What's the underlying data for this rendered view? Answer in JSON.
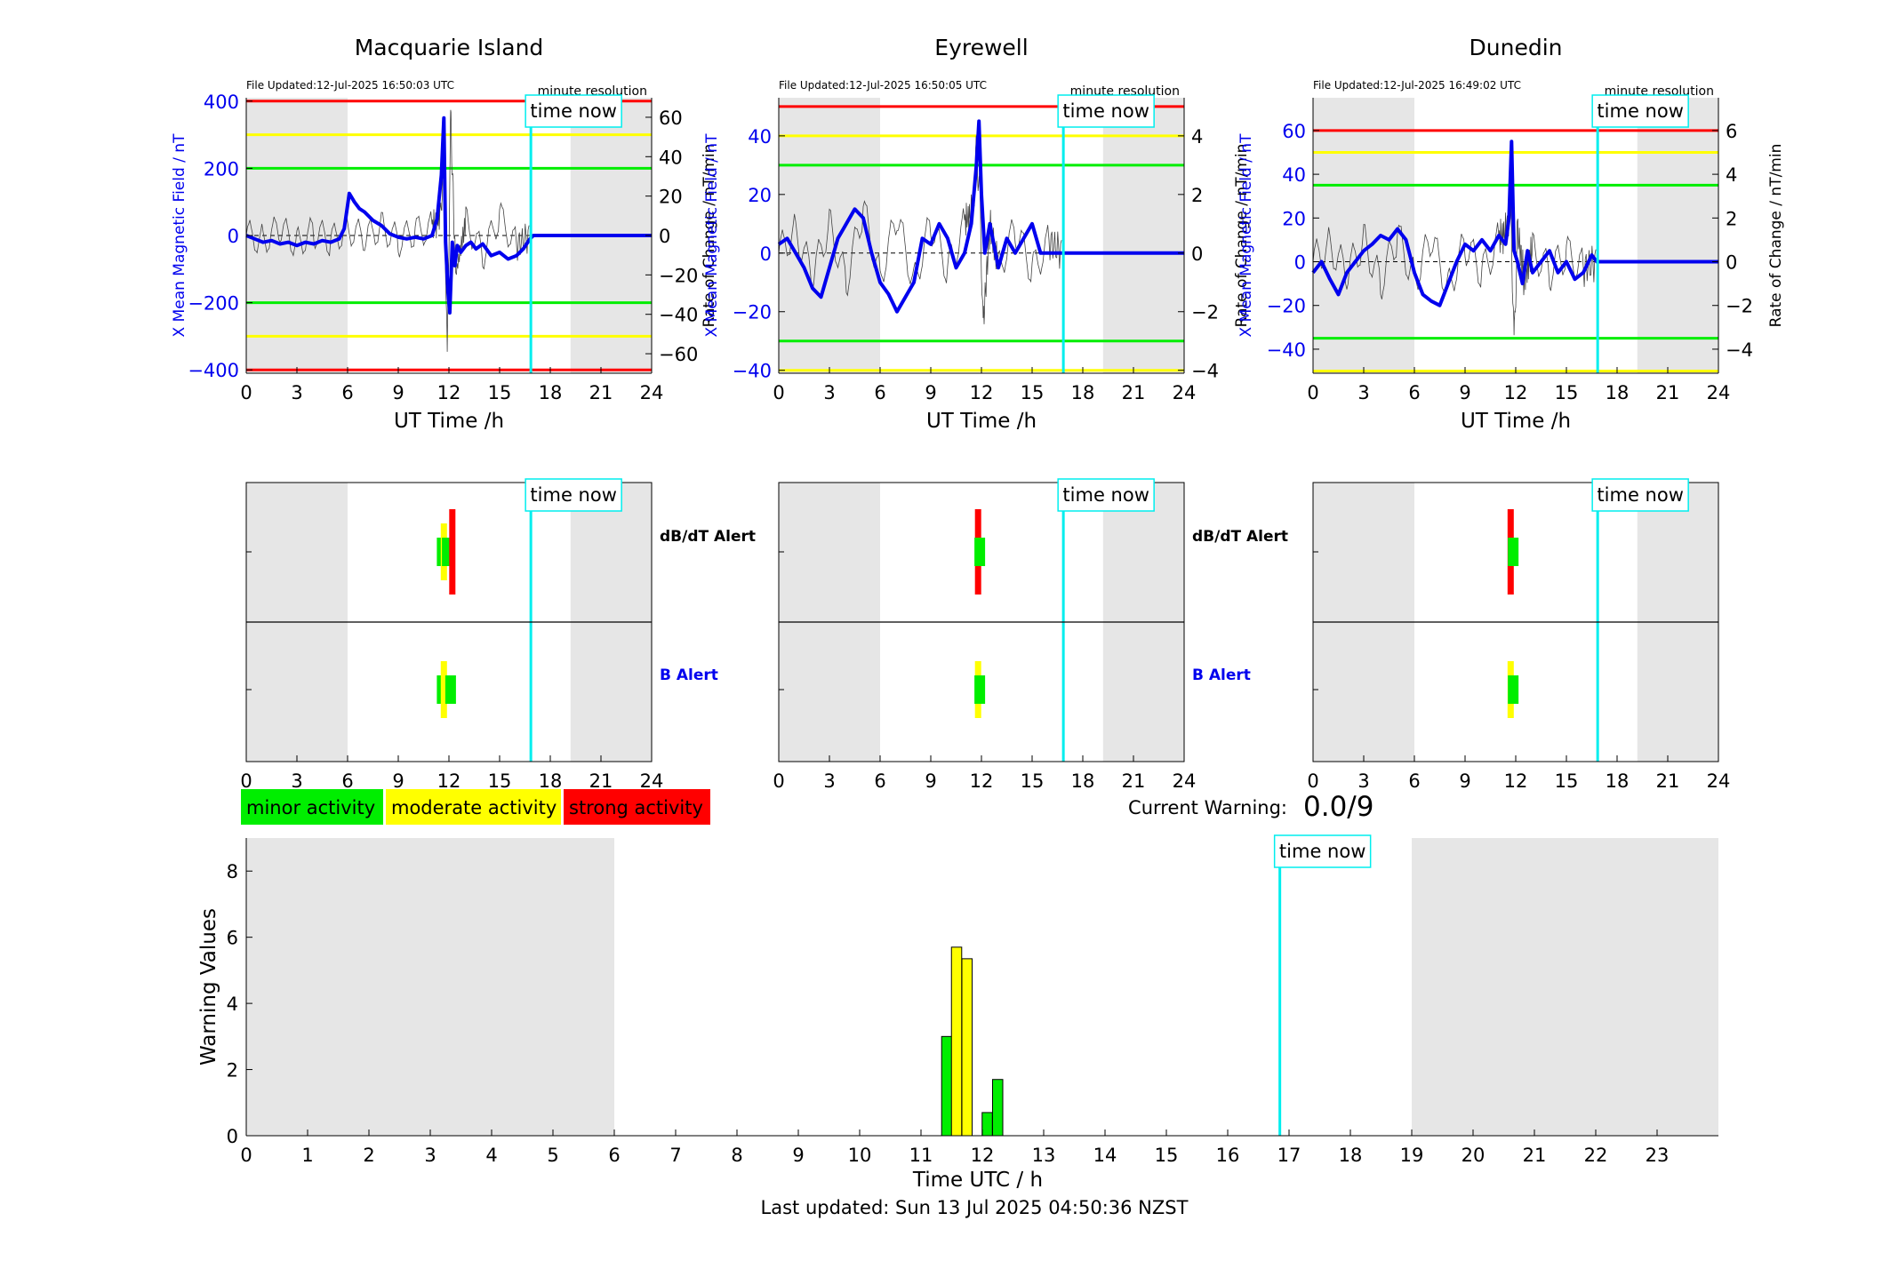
{
  "chart_data": [
    {
      "type": "line",
      "panel": "field",
      "title": "Macquarie Island",
      "file_updated": "File Updated:12-Jul-2025 16:50:03 UTC",
      "resolution_label": "minute resolution",
      "time_now_label": "time now",
      "time_now_hour": 16.85,
      "night_shading": [
        [
          0,
          6
        ],
        [
          19.2,
          24
        ]
      ],
      "xlabel": "UT Time /h",
      "ylabel_left": "X Mean Magnetic Field / nT",
      "ylabel_right": "Rate of Change / nT/min",
      "xlim": [
        0,
        24
      ],
      "xticks": [
        0,
        3,
        6,
        9,
        12,
        15,
        18,
        21,
        24
      ],
      "ylim_left": [
        -410,
        410
      ],
      "yticks_left": [
        -400,
        -200,
        0,
        200,
        400
      ],
      "ylim_right": [
        -69.9,
        69.9
      ],
      "yticks_right": [
        -60,
        -40,
        -20,
        0,
        20,
        40,
        60
      ],
      "thresholds": [
        {
          "level": "minor",
          "value": 200,
          "color": "#00ee00"
        },
        {
          "level": "moderate",
          "value": 300,
          "color": "#ffff00"
        },
        {
          "level": "strong",
          "value": 400,
          "color": "#ff0000"
        }
      ],
      "series": [
        {
          "axis": "left",
          "color": "#0000ee",
          "x": [
            0,
            0.5,
            1,
            1.5,
            2,
            2.5,
            3,
            3.5,
            4,
            4.5,
            5,
            5.5,
            5.8,
            6.1,
            6.4,
            6.7,
            7,
            7.5,
            8,
            8.5,
            9,
            9.5,
            10,
            10.5,
            11,
            11.3,
            11.55,
            11.7,
            11.8,
            11.95,
            12.05,
            12.2,
            12.35,
            12.5,
            12.7,
            13,
            13.3,
            13.6,
            14,
            14.5,
            15,
            15.5,
            16,
            16.4,
            16.8,
            17,
            18,
            19,
            20,
            21,
            22,
            23,
            24
          ],
          "y": [
            0,
            -10,
            -20,
            -15,
            -25,
            -20,
            -30,
            -20,
            -25,
            -15,
            -20,
            -10,
            20,
            125,
            100,
            80,
            70,
            45,
            30,
            5,
            -5,
            -10,
            -5,
            -10,
            0,
            50,
            180,
            350,
            -20,
            -170,
            -230,
            -20,
            -90,
            -30,
            -50,
            -30,
            -20,
            -40,
            -25,
            -60,
            -50,
            -70,
            -60,
            -40,
            -10,
            0,
            0,
            0,
            0,
            0,
            0,
            0,
            0
          ]
        },
        {
          "axis": "right",
          "color": "#000000",
          "style": "noisy",
          "x": [
            0,
            1,
            2,
            3,
            4,
            5,
            6,
            7,
            8,
            9,
            10,
            11,
            11.5,
            11.7,
            11.9,
            12.1,
            12.4,
            13,
            14,
            15,
            16,
            16.8
          ],
          "y": [
            0,
            -2,
            3,
            -4,
            2,
            -3,
            4,
            -2,
            5,
            -3,
            2,
            4,
            10,
            40,
            -65,
            60,
            -20,
            8,
            -10,
            10,
            -5,
            0
          ]
        }
      ]
    },
    {
      "type": "line",
      "panel": "field",
      "title": "Eyrewell",
      "file_updated": "File Updated:12-Jul-2025 16:50:05 UTC",
      "resolution_label": "minute resolution",
      "time_now_label": "time now",
      "time_now_hour": 16.85,
      "night_shading": [
        [
          0,
          6
        ],
        [
          19.2,
          24
        ]
      ],
      "xlabel": "UT Time /h",
      "ylabel_left": "X Mean Magnetic Field / nT",
      "ylabel_right": "Rate of Change / nT/min",
      "xlim": [
        0,
        24
      ],
      "xticks": [
        0,
        3,
        6,
        9,
        12,
        15,
        18,
        21,
        24
      ],
      "ylim_left": [
        -41,
        53
      ],
      "yticks_left": [
        -40,
        -20,
        0,
        20,
        40
      ],
      "ylim_right": [
        -4.1,
        5.3
      ],
      "yticks_right": [
        -4,
        -2,
        0,
        2,
        4
      ],
      "thresholds": [
        {
          "level": "minor",
          "value": 30,
          "color": "#00ee00"
        },
        {
          "level": "moderate",
          "value": 40,
          "color": "#ffff00"
        },
        {
          "level": "strong",
          "value": 50,
          "color": "#ff0000"
        }
      ],
      "series": [
        {
          "axis": "left",
          "color": "#0000ee",
          "x": [
            0,
            0.5,
            1,
            1.5,
            2,
            2.5,
            3,
            3.5,
            4,
            4.5,
            5,
            5.5,
            6,
            6.5,
            7,
            7.5,
            8,
            8.5,
            9,
            9.5,
            10,
            10.5,
            11,
            11.4,
            11.7,
            11.85,
            12,
            12.2,
            12.5,
            13,
            13.5,
            14,
            14.5,
            15,
            15.5,
            16,
            16.8,
            18,
            20,
            22,
            24
          ],
          "y": [
            3,
            5,
            0,
            -5,
            -12,
            -15,
            -5,
            5,
            10,
            15,
            12,
            0,
            -10,
            -14,
            -20,
            -15,
            -10,
            5,
            3,
            10,
            5,
            -5,
            0,
            10,
            30,
            45,
            20,
            0,
            10,
            -5,
            5,
            0,
            5,
            10,
            0,
            0,
            0,
            0,
            0,
            0,
            0
          ]
        },
        {
          "axis": "right",
          "color": "#000000",
          "style": "noisy",
          "x": [
            0,
            1,
            2,
            3,
            4,
            5,
            6,
            7,
            8,
            9,
            10,
            11,
            11.5,
            11.7,
            11.9,
            12.1,
            12.5,
            13,
            14,
            15,
            16,
            16.8
          ],
          "y": [
            0,
            0.8,
            -0.8,
            1,
            -1,
            1.5,
            -0.8,
            1.2,
            -1,
            1,
            -0.6,
            1,
            1.5,
            3.5,
            2,
            -2.5,
            1,
            -0.5,
            0.8,
            -0.6,
            0.4,
            0
          ]
        }
      ]
    },
    {
      "type": "line",
      "panel": "field",
      "title": "Dunedin",
      "file_updated": "File Updated:12-Jul-2025 16:49:02 UTC",
      "resolution_label": "minute resolution",
      "time_now_label": "time now",
      "time_now_hour": 16.85,
      "night_shading": [
        [
          0,
          6
        ],
        [
          19.2,
          24
        ]
      ],
      "xlabel": "UT Time /h",
      "ylabel_left": "X Mean Magnetic Field / nT",
      "ylabel_right": "Rate of Change / nT/min",
      "xlim": [
        0,
        24
      ],
      "xticks": [
        0,
        3,
        6,
        9,
        12,
        15,
        18,
        21,
        24
      ],
      "ylim_left": [
        -51,
        75
      ],
      "yticks_left": [
        -40,
        -20,
        0,
        20,
        40,
        60
      ],
      "ylim_right": [
        -5.1,
        7.5
      ],
      "yticks_right": [
        -4,
        -2,
        0,
        2,
        4,
        6
      ],
      "thresholds": [
        {
          "level": "minor",
          "value": 35,
          "color": "#00ee00"
        },
        {
          "level": "moderate",
          "value": 50,
          "color": "#ffff00"
        },
        {
          "level": "strong",
          "value": 60,
          "color": "#ff0000"
        }
      ],
      "series": [
        {
          "axis": "left",
          "color": "#0000ee",
          "x": [
            0,
            0.5,
            1,
            1.5,
            2,
            2.5,
            3,
            3.5,
            4,
            4.5,
            5,
            5.5,
            6,
            6.5,
            7,
            7.5,
            8,
            8.5,
            9,
            9.5,
            10,
            10.5,
            11,
            11.4,
            11.6,
            11.75,
            11.9,
            12.1,
            12.4,
            12.7,
            13,
            13.5,
            14,
            14.5,
            15,
            15.5,
            16,
            16.5,
            16.8,
            18,
            20,
            22,
            24
          ],
          "y": [
            -5,
            0,
            -8,
            -15,
            -5,
            0,
            5,
            8,
            12,
            10,
            15,
            10,
            -5,
            -15,
            -18,
            -20,
            -10,
            0,
            8,
            5,
            10,
            5,
            12,
            8,
            20,
            55,
            5,
            0,
            -10,
            5,
            -5,
            0,
            5,
            -5,
            0,
            -8,
            -5,
            3,
            0,
            0,
            0,
            0,
            0
          ]
        },
        {
          "axis": "right",
          "color": "#000000",
          "style": "noisy",
          "x": [
            0,
            1,
            2,
            3,
            4,
            5,
            6,
            7,
            8,
            9,
            10,
            11,
            11.5,
            11.7,
            11.9,
            12.1,
            12.5,
            13,
            14,
            15,
            16,
            16.8
          ],
          "y": [
            0,
            0.8,
            -0.6,
            1,
            -1,
            1.2,
            -0.8,
            1,
            -1.2,
            0.8,
            -0.5,
            1,
            1.5,
            3,
            -4,
            1.5,
            -0.8,
            0.6,
            -0.5,
            0.4,
            -0.3,
            0
          ]
        }
      ]
    },
    {
      "type": "bar",
      "panel": "alerts",
      "station": "Macquarie Island",
      "xlim": [
        0,
        24
      ],
      "xticks": [
        0,
        3,
        6,
        9,
        12,
        15,
        18,
        21,
        24
      ],
      "time_now_label": "time now",
      "time_now_hour": 16.85,
      "night_shading": [
        [
          0,
          6
        ],
        [
          19.2,
          24
        ]
      ],
      "rows": [
        {
          "label": "dB/dT Alert",
          "label_color": "#000000",
          "bars": [
            {
              "x": 11.6,
              "level": "minor"
            },
            {
              "x": 11.7,
              "level": "moderate"
            },
            {
              "x": 11.9,
              "level": "minor"
            },
            {
              "x": 12.2,
              "level": "strong"
            }
          ]
        },
        {
          "label": "B Alert",
          "label_color": "#0000ee",
          "bars": [
            {
              "x": 11.6,
              "level": "minor"
            },
            {
              "x": 11.7,
              "level": "moderate"
            },
            {
              "x": 12.1,
              "level": "minor"
            }
          ]
        }
      ]
    },
    {
      "type": "bar",
      "panel": "alerts",
      "station": "Eyrewell",
      "xlim": [
        0,
        24
      ],
      "xticks": [
        0,
        3,
        6,
        9,
        12,
        15,
        18,
        21,
        24
      ],
      "time_now_label": "time now",
      "time_now_hour": 16.85,
      "night_shading": [
        [
          0,
          6
        ],
        [
          19.2,
          24
        ]
      ],
      "rows": [
        {
          "label": "dB/dT Alert",
          "label_color": "#000000",
          "bars": [
            {
              "x": 11.8,
              "level": "strong"
            },
            {
              "x": 11.9,
              "level": "minor"
            }
          ]
        },
        {
          "label": "B Alert",
          "label_color": "#0000ee",
          "bars": [
            {
              "x": 11.8,
              "level": "moderate"
            },
            {
              "x": 11.9,
              "level": "minor"
            }
          ]
        }
      ]
    },
    {
      "type": "bar",
      "panel": "alerts",
      "station": "Dunedin",
      "xlim": [
        0,
        24
      ],
      "xticks": [
        0,
        3,
        6,
        9,
        12,
        15,
        18,
        21,
        24
      ],
      "time_now_label": "time now",
      "time_now_hour": 16.85,
      "night_shading": [
        [
          0,
          6
        ],
        [
          19.2,
          24
        ]
      ],
      "rows": [
        {
          "label": "",
          "label_color": "#000000",
          "bars": [
            {
              "x": 11.7,
              "level": "strong"
            },
            {
              "x": 11.85,
              "level": "minor"
            }
          ]
        },
        {
          "label": "",
          "label_color": "#0000ee",
          "bars": [
            {
              "x": 11.7,
              "level": "moderate"
            },
            {
              "x": 11.85,
              "level": "minor"
            }
          ]
        }
      ]
    },
    {
      "type": "bar",
      "panel": "warning",
      "xlabel": "Time UTC / h",
      "ylabel": "Warning Values",
      "xlim": [
        0,
        24
      ],
      "xticks": [
        0,
        1,
        2,
        3,
        4,
        5,
        6,
        7,
        8,
        9,
        10,
        11,
        12,
        13,
        14,
        15,
        16,
        17,
        18,
        19,
        20,
        21,
        22,
        23
      ],
      "ylim": [
        0,
        9
      ],
      "yticks": [
        0,
        2,
        4,
        6,
        8
      ],
      "time_now_label": "time now",
      "time_now_hour": 16.85,
      "night_shading": [
        [
          0,
          6
        ],
        [
          19,
          24
        ]
      ],
      "bar_width_hours": 0.167,
      "bars": [
        {
          "x": 11.42,
          "value": 3.0,
          "level": "minor"
        },
        {
          "x": 11.58,
          "value": 5.7,
          "level": "moderate"
        },
        {
          "x": 11.75,
          "value": 5.35,
          "level": "moderate"
        },
        {
          "x": 12.08,
          "value": 0.7,
          "level": "minor"
        },
        {
          "x": 12.25,
          "value": 1.7,
          "level": "minor"
        }
      ]
    }
  ],
  "legend": {
    "items": [
      {
        "level": "minor",
        "label": "minor activity",
        "color": "#00ee00"
      },
      {
        "level": "moderate",
        "label": "moderate activity",
        "color": "#ffff00"
      },
      {
        "level": "strong",
        "label": "strong activity",
        "color": "#ff0000"
      }
    ]
  },
  "current_warning": {
    "label": "Current Warning:",
    "value": "0.0/9"
  },
  "footer": {
    "last_updated": "Last updated: Sun 13 Jul 2025 04:50:36 NZST"
  },
  "colors": {
    "night": "#e6e6e6",
    "time_now": "#00eeee",
    "field_line": "#0000ee",
    "minor": "#00ee00",
    "moderate": "#ffff00",
    "strong": "#ff0000"
  }
}
